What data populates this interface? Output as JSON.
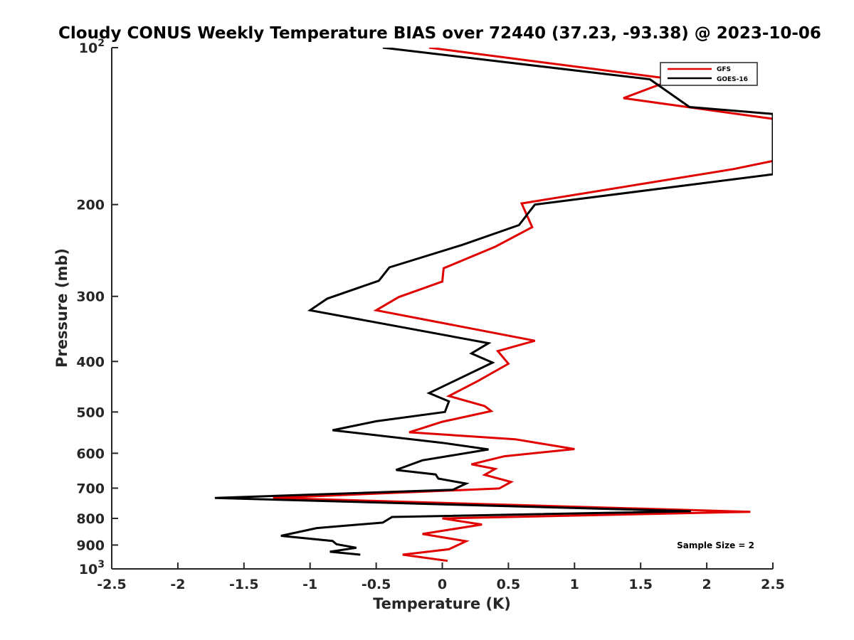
{
  "chart_data": {
    "type": "line",
    "title": "Cloudy CONUS Weekly Temperature BIAS over 72440 (37.23, -93.38) @ 2023-10-06",
    "xlabel": "Temperature (K)",
    "ylabel": "Pressure (mb)",
    "xlim": [
      -2.5,
      2.5
    ],
    "ylim": [
      100,
      1000
    ],
    "y_scale": "log",
    "y_reversed": true,
    "grid": false,
    "legend_position": "top-right",
    "xticks": [
      "-2.5",
      "-2",
      "-1.5",
      "-1",
      "-0.5",
      "0",
      "0.5",
      "1",
      "1.5",
      "2",
      "2.5"
    ],
    "xtick_values": [
      -2.5,
      -2,
      -1.5,
      -1,
      -0.5,
      0,
      0.5,
      1,
      1.5,
      2,
      2.5
    ],
    "yticks": [
      {
        "value": 100,
        "label": "10",
        "sup": "2"
      },
      {
        "value": 200,
        "label": "200"
      },
      {
        "value": 300,
        "label": "300"
      },
      {
        "value": 400,
        "label": "400"
      },
      {
        "value": 500,
        "label": "500"
      },
      {
        "value": 600,
        "label": "600"
      },
      {
        "value": 700,
        "label": "700"
      },
      {
        "value": 800,
        "label": "800"
      },
      {
        "value": 900,
        "label": "900"
      },
      {
        "value": 1000,
        "label": "10",
        "sup": "3"
      }
    ],
    "annotation": "Sample Size = 2",
    "series": [
      {
        "name": "GFS",
        "color": "#e00000",
        "points": [
          [
            -0.1,
            100
          ],
          [
            1.75,
            115
          ],
          [
            1.37,
            125
          ],
          [
            2.5,
            137
          ],
          [
            2.5,
            165
          ],
          [
            2.2,
            171
          ],
          [
            0.6,
            199
          ],
          [
            0.68,
            221
          ],
          [
            0.4,
            241
          ],
          [
            0.01,
            265
          ],
          [
            0.0,
            281
          ],
          [
            -0.33,
            301
          ],
          [
            -0.5,
            319
          ],
          [
            0.7,
            365
          ],
          [
            0.42,
            382
          ],
          [
            0.5,
            404
          ],
          [
            0.27,
            436
          ],
          [
            0.05,
            466
          ],
          [
            0.32,
            487
          ],
          [
            0.37,
            498
          ],
          [
            0.0,
            522
          ],
          [
            -0.25,
            547
          ],
          [
            0.55,
            564
          ],
          [
            1.0,
            589
          ],
          [
            0.47,
            608
          ],
          [
            0.22,
            630
          ],
          [
            0.4,
            643
          ],
          [
            0.32,
            660
          ],
          [
            0.52,
            681
          ],
          [
            0.43,
            701
          ],
          [
            -1.28,
            731
          ],
          [
            2.33,
            777
          ],
          [
            0.0,
            800
          ],
          [
            0.3,
            822
          ],
          [
            -0.15,
            857
          ],
          [
            0.18,
            885
          ],
          [
            0.05,
            917
          ],
          [
            -0.3,
            939
          ],
          [
            0.04,
            965
          ]
        ]
      },
      {
        "name": "GOES-16",
        "color": "#000000",
        "points": [
          [
            -0.45,
            100
          ],
          [
            1.57,
            115
          ],
          [
            1.87,
            130
          ],
          [
            2.5,
            134
          ],
          [
            2.5,
            175
          ],
          [
            0.7,
            200
          ],
          [
            0.58,
            219
          ],
          [
            0.15,
            239
          ],
          [
            -0.4,
            264
          ],
          [
            -0.48,
            280
          ],
          [
            -0.87,
            303
          ],
          [
            -1.0,
            319
          ],
          [
            0.35,
            369
          ],
          [
            0.22,
            386
          ],
          [
            0.38,
            402
          ],
          [
            -0.1,
            460
          ],
          [
            0.05,
            477
          ],
          [
            0.02,
            500
          ],
          [
            -0.5,
            521
          ],
          [
            -0.83,
            542
          ],
          [
            0.0,
            573
          ],
          [
            0.35,
            590
          ],
          [
            -0.15,
            619
          ],
          [
            -0.35,
            646
          ],
          [
            -0.05,
            659
          ],
          [
            -0.03,
            671
          ],
          [
            0.18,
            686
          ],
          [
            0.08,
            705
          ],
          [
            -1.72,
            731
          ],
          [
            1.88,
            775
          ],
          [
            -0.38,
            795
          ],
          [
            -0.45,
            815
          ],
          [
            -0.95,
            835
          ],
          [
            -1.22,
            864
          ],
          [
            -0.83,
            884
          ],
          [
            -0.8,
            897
          ],
          [
            -0.65,
            911
          ],
          [
            -0.85,
            927
          ],
          [
            -0.62,
            939
          ]
        ]
      }
    ]
  }
}
